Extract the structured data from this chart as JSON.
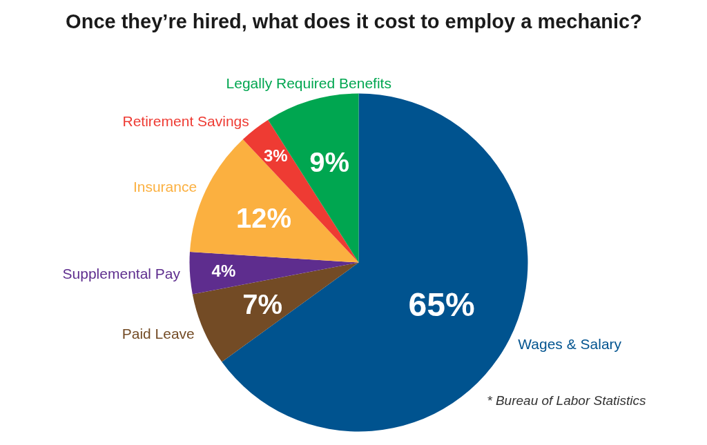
{
  "chart_data": {
    "type": "pie",
    "title": "Once they’re hired, what does it cost to employ a mechanic?",
    "categories": [
      "Wages & Salary",
      "Paid Leave",
      "Supplemental Pay",
      "Insurance",
      "Retirement Savings",
      "Legally Required Benefits"
    ],
    "values": [
      65,
      7,
      4,
      12,
      3,
      9
    ],
    "colors": [
      "#00538f",
      "#734b25",
      "#5e2d8e",
      "#fbb040",
      "#ee3b33",
      "#00a650"
    ],
    "value_labels": [
      "65%",
      "7%",
      "4%",
      "12%",
      "3%",
      "9%"
    ],
    "annotations": [
      "* Bureau of Labor Statistics"
    ]
  }
}
